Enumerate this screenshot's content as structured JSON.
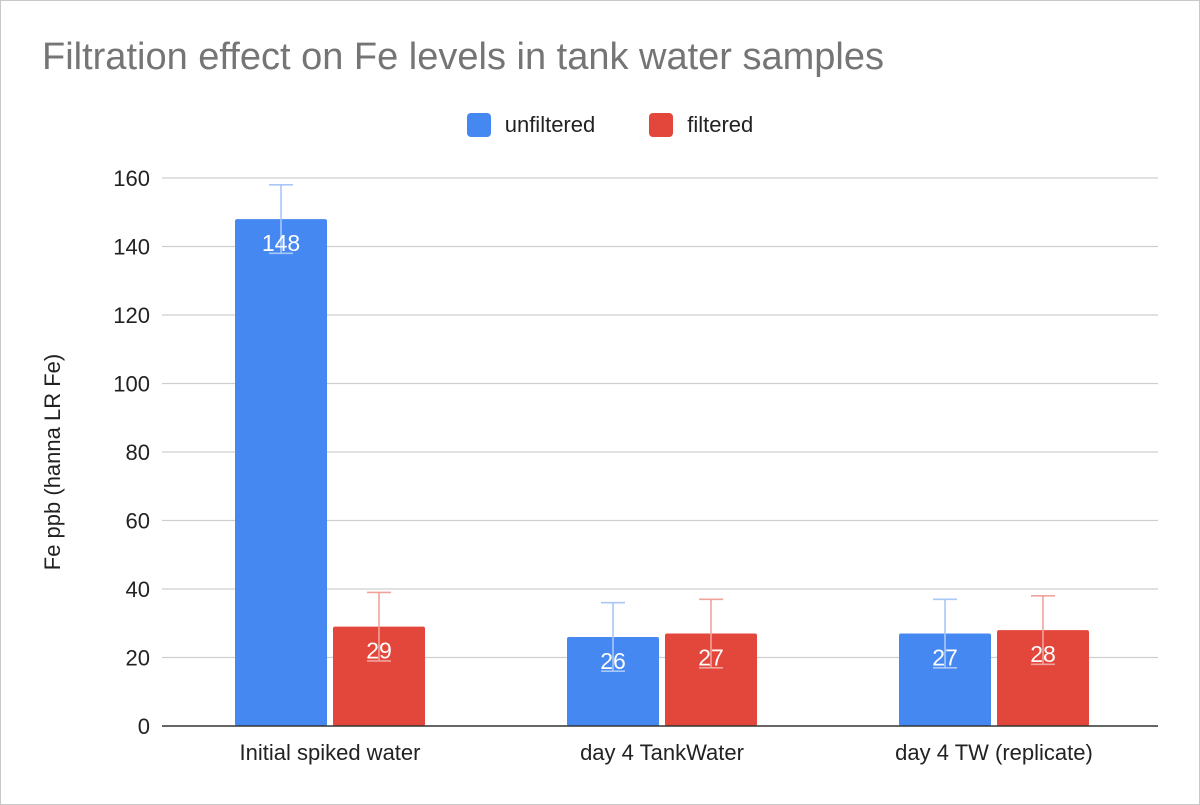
{
  "chart_data": {
    "type": "bar",
    "title": "Filtration effect on Fe levels in tank water samples",
    "ylabel": "Fe ppb (hanna LR Fe)",
    "xlabel": "",
    "ylim": [
      0,
      160
    ],
    "yticks": [
      0,
      20,
      40,
      60,
      80,
      100,
      120,
      140,
      160
    ],
    "ytick_labels": [
      "0",
      "20",
      "40",
      "60",
      "80",
      "100",
      "120",
      "140",
      "160"
    ],
    "grid": true,
    "legend_position": "top",
    "categories": [
      "Initial spiked water",
      "day 4 TankWater",
      "day 4 TW (replicate)"
    ],
    "series": [
      {
        "name": "unfiltered",
        "color": "#4688f1",
        "error_color": "#a9c7f7",
        "values": [
          148,
          26,
          27
        ],
        "labels": [
          "148",
          "26",
          "27"
        ],
        "error": [
          10,
          10,
          10
        ]
      },
      {
        "name": "filtered",
        "color": "#e3463a",
        "error_color": "#f0a39c",
        "values": [
          29,
          27,
          28
        ],
        "labels": [
          "29",
          "27",
          "28"
        ],
        "error": [
          10,
          10,
          10
        ]
      }
    ]
  }
}
